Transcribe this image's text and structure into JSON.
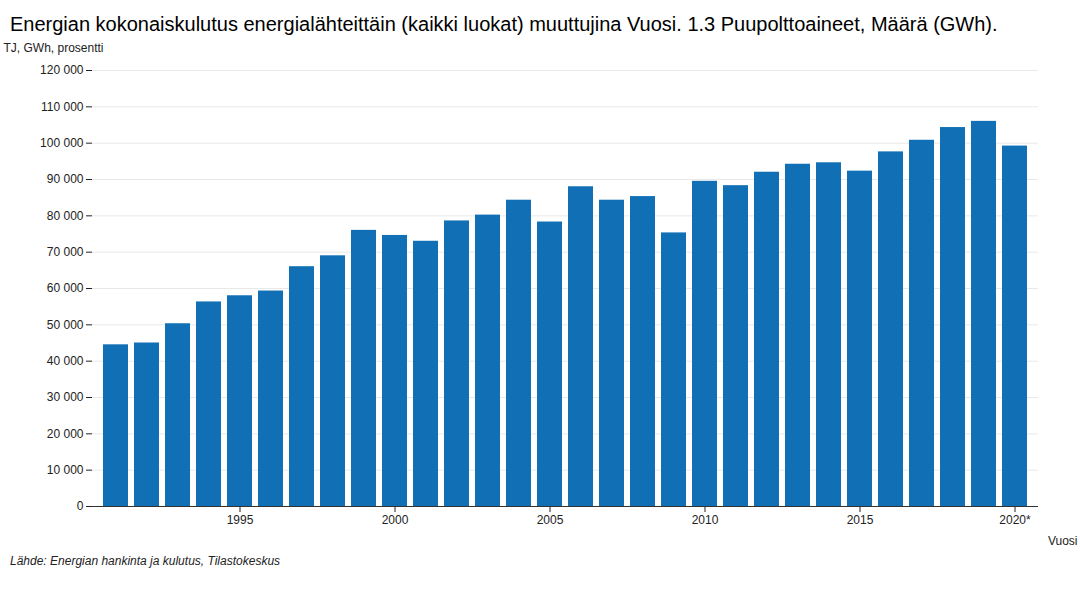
{
  "chart_data": {
    "type": "bar",
    "title": "Energian kokonaiskulutus energialähteittäin (kaikki luokat) muuttujina Vuosi. 1.3 Puupolttoaineet, Määrä (GWh).",
    "ylabel": "TJ, GWh, prosentti",
    "xlabel": "Vuosi",
    "source": "Lähde: Energian hankinta ja kulutus, Tilastokeskus",
    "categories": [
      null,
      null,
      null,
      null,
      "1995",
      null,
      null,
      null,
      null,
      "2000",
      null,
      null,
      null,
      null,
      "2005",
      null,
      null,
      null,
      null,
      "2010",
      null,
      null,
      null,
      null,
      "2015",
      null,
      null,
      null,
      null,
      "2020*"
    ],
    "values": [
      44500,
      45000,
      50300,
      56300,
      58000,
      59300,
      66000,
      69000,
      76000,
      74600,
      73000,
      78600,
      80200,
      84300,
      78300,
      88000,
      84300,
      85300,
      75300,
      89500,
      88300,
      92000,
      94200,
      94600,
      92300,
      97600,
      100800,
      104300,
      106000,
      99200
    ],
    "color": "#1170b5",
    "ylim": [
      0,
      120000
    ],
    "yticks": [
      0,
      {
        "value": 10000,
        "label": "10 000"
      },
      {
        "value": 20000,
        "label": "20 000"
      },
      {
        "value": 30000,
        "label": "30 000"
      },
      {
        "value": 40000,
        "label": "40 000"
      },
      {
        "value": 50000,
        "label": "50 000"
      },
      {
        "value": 60000,
        "label": "60 000"
      },
      {
        "value": 70000,
        "label": "70 000"
      },
      {
        "value": 80000,
        "label": "80 000"
      },
      {
        "value": 90000,
        "label": "90 000"
      },
      {
        "value": 100000,
        "label": "100 000"
      },
      {
        "value": 110000,
        "label": "110 000"
      },
      {
        "value": 120000,
        "label": "120 000"
      }
    ],
    "grid": true
  }
}
